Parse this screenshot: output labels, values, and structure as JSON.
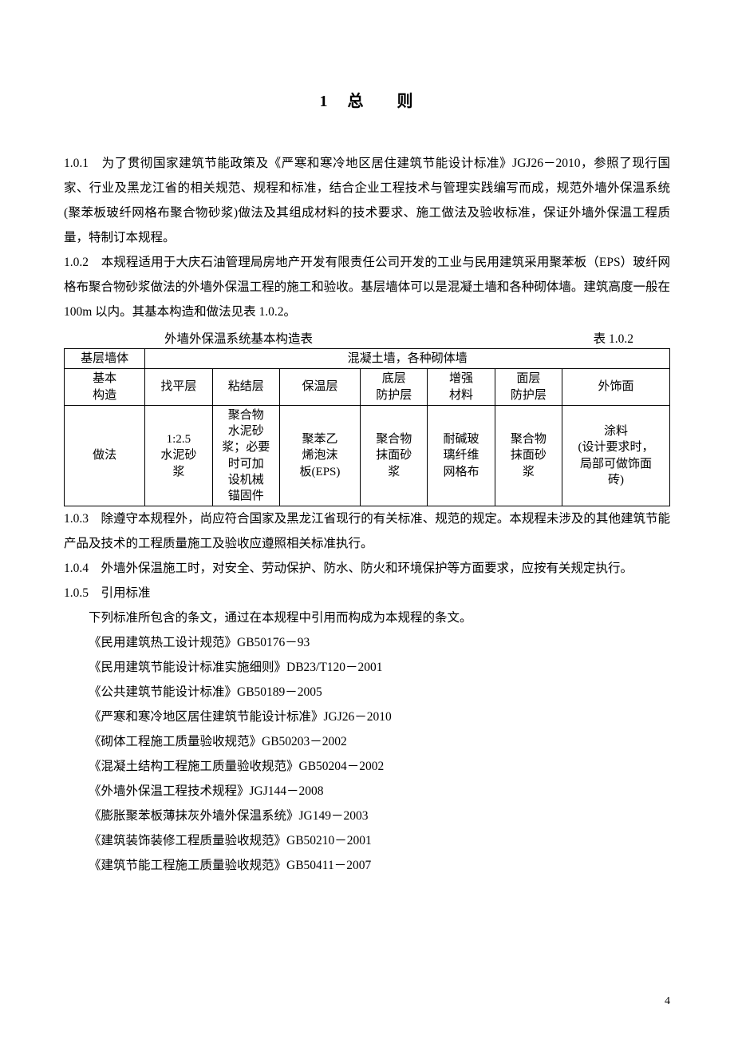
{
  "chapter": {
    "number": "1",
    "title_a": "总",
    "title_b": "则"
  },
  "clauses": {
    "c1": {
      "num": "1.0.1",
      "text": "　为了贯彻国家建筑节能政策及《严寒和寒冷地区居住建筑节能设计标准》JGJ26－2010，参照了现行国家、行业及黑龙江省的相关规范、规程和标准，结合企业工程技术与管理实践编写而成，规范外墙外保温系统(聚苯板玻纤网格布聚合物砂浆)做法及其组成材料的技术要求、施工做法及验收标准，保证外墙外保温工程质量，特制订本规程。"
    },
    "c2": {
      "num": "1.0.2",
      "text": "　本规程适用于大庆石油管理局房地产开发有限责任公司开发的工业与民用建筑采用聚苯板（EPS）玻纤网格布聚合物砂浆做法的外墙外保温工程的施工和验收。基层墙体可以是混凝土墙和各种砌体墙。建筑高度一般在 100m 以内。其基本构造和做法见表 1.0.2。"
    },
    "c3": {
      "num": "1.0.3",
      "text": "　除遵守本规程外，尚应符合国家及黑龙江省现行的有关标准、规范的规定。本规程未涉及的其他建筑节能产品及技术的工程质量施工及验收应遵照相关标准执行。"
    },
    "c4": {
      "num": "1.0.4",
      "text": "　外墙外保温施工时，对安全、劳动保护、防水、防火和环境保护等方面要求，应按有关规定执行。"
    },
    "c5": {
      "num": "1.0.5",
      "text": "　引用标准"
    }
  },
  "table": {
    "caption": "外墙外保温系统基本构造表",
    "label": "表 1.0.2",
    "row1_left": "基层墙体",
    "row1_right": "混凝土墙，各种砌体墙",
    "row2_left": "基本\n构造",
    "row2": [
      "找平层",
      "粘结层",
      "保温层",
      "底层\n防护层",
      "增强\n材料",
      "面层\n防护层",
      "外饰面"
    ],
    "row3_left": "做法",
    "row3": [
      "1:2.5\n水泥砂\n浆",
      "聚合物\n水泥砂\n浆；必要\n时可加\n设机械\n锚固件",
      "聚苯乙\n烯泡沫\n板(EPS)",
      "聚合物\n抹面砂\n浆",
      "耐碱玻\n璃纤维\n网格布",
      "聚合物\n抹面砂\n浆",
      "涂料\n(设计要求时，\n局部可做饰面\n砖)"
    ]
  },
  "standards": {
    "intro": "下列标准所包含的条文，通过在本规程中引用而构成为本规程的条文。",
    "items": [
      "《民用建筑热工设计规范》GB50176－93",
      "《民用建筑节能设计标准实施细则》DB23/T120－2001",
      "《公共建筑节能设计标准》GB50189－2005",
      "《严寒和寒冷地区居住建筑节能设计标准》JGJ26－2010",
      "《砌体工程施工质量验收规范》GB50203－2002",
      "《混凝土结构工程施工质量验收规范》GB50204－2002",
      "《外墙外保温工程技术规程》JGJ144－2008",
      "《膨胀聚苯板薄抹灰外墙外保温系统》JG149－2003",
      "《建筑装饰装修工程质量验收规范》GB50210－2001",
      "《建筑节能工程施工质量验收规范》GB50411－2007"
    ]
  },
  "page_number": "4"
}
